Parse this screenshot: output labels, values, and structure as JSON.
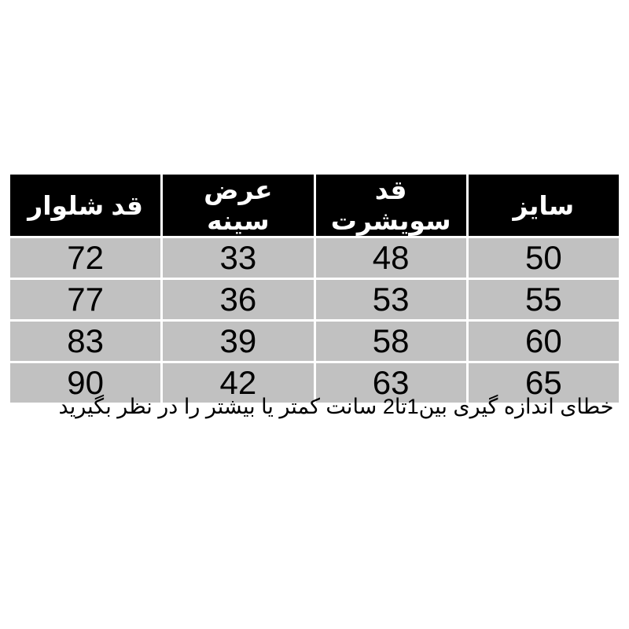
{
  "chart_data": {
    "type": "table",
    "direction": "rtl",
    "headers": [
      {
        "id": "size",
        "label": "سایز"
      },
      {
        "id": "sweatshirt-length",
        "label": "قد سویشرت"
      },
      {
        "id": "chest-width",
        "label": "عرض سینه"
      },
      {
        "id": "pants-length",
        "label": "قد شلوار"
      }
    ],
    "rows": [
      [
        "50",
        "48",
        "33",
        "72"
      ],
      [
        "55",
        "53",
        "36",
        "77"
      ],
      [
        "60",
        "58",
        "39",
        "83"
      ],
      [
        "65",
        "63",
        "42",
        "90"
      ]
    ],
    "note": "خطای اندازه گیری بین1تا2 سانت کمتر یا بیشتر را در نظر بگیرید"
  },
  "colors": {
    "header_bg": "#000000",
    "header_text": "#ffffff",
    "cell_bg": "#c1c1c1",
    "cell_text": "#000000",
    "page_bg": "#ffffff",
    "separator": "#ffffff"
  }
}
